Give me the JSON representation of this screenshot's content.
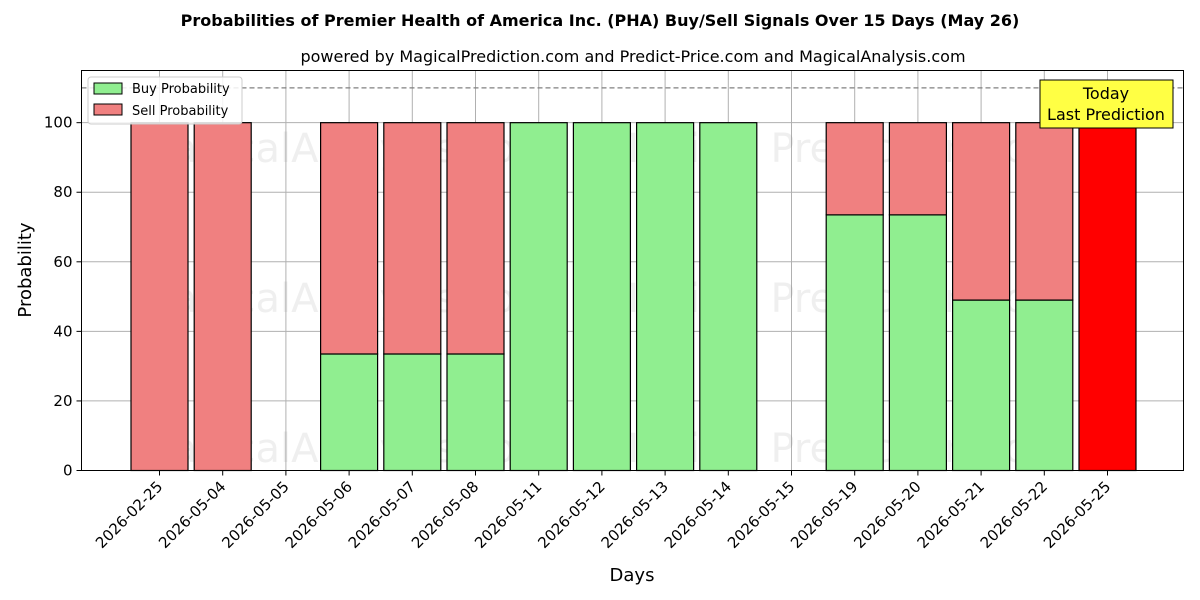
{
  "chart_data": {
    "type": "bar",
    "stacked": true,
    "title": "Probabilities of Premier Health of America Inc. (PHA) Buy/Sell Signals Over 15 Days (May 26)",
    "subtitle": "powered by MagicalPrediction.com and Predict-Price.com and MagicalAnalysis.com",
    "xlabel": "Days",
    "ylabel": "Probability",
    "ylim": [
      0,
      115
    ],
    "yticks": [
      0,
      20,
      40,
      60,
      80,
      100
    ],
    "grid": true,
    "legend_placement": "top-left",
    "categories": [
      "2026-02-25",
      "2026-05-04",
      "2026-05-05",
      "2026-05-06",
      "2026-05-07",
      "2026-05-08",
      "2026-05-11",
      "2026-05-12",
      "2026-05-13",
      "2026-05-14",
      "2026-05-15",
      "2026-05-19",
      "2026-05-20",
      "2026-05-21",
      "2026-05-22",
      "2026-05-25"
    ],
    "series": [
      {
        "name": "Buy Probability",
        "color": "#90ee90",
        "values": [
          0,
          0,
          null,
          33.5,
          33.5,
          33.5,
          100,
          100,
          100,
          100,
          null,
          73.5,
          73.5,
          49,
          49,
          0
        ]
      },
      {
        "name": "Sell Probability",
        "color": "#f08080",
        "values": [
          100,
          100,
          null,
          66.5,
          66.5,
          66.5,
          0,
          0,
          0,
          0,
          null,
          26.5,
          26.5,
          51,
          51,
          100
        ]
      }
    ],
    "highlight": {
      "category": "2026-05-25",
      "color": "#ff0000"
    },
    "reference_line": {
      "y": 110,
      "style": "dashed",
      "color": "#808080"
    },
    "annotation": {
      "line1": "Today",
      "line2": "Last Prediction",
      "background": "#ffff44"
    },
    "watermarks": [
      "MagicalAnalysis.com",
      "Magical Prediction.com"
    ]
  }
}
